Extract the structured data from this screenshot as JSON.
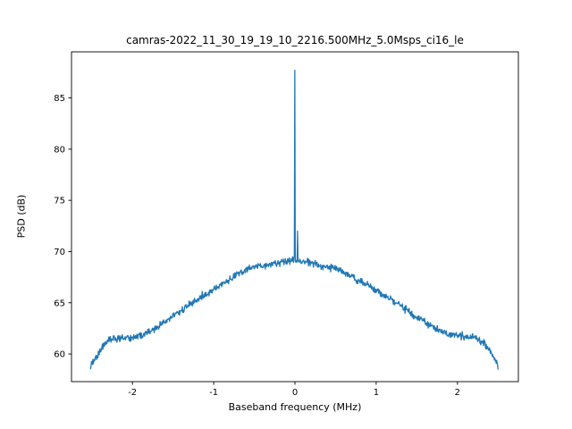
{
  "chart_data": {
    "type": "line",
    "title": "camras-2022_11_30_19_19_10_2216.500MHz_5.0Msps_ci16_le",
    "xlabel": "Baseband frequency (MHz)",
    "ylabel": "PSD (dB)",
    "xlim": [
      -2.75,
      2.75
    ],
    "ylim": [
      57.3,
      89.5
    ],
    "xticks": [
      -2,
      -1,
      0,
      1,
      2
    ],
    "yticks": [
      60,
      65,
      70,
      75,
      80,
      85
    ],
    "grid": false,
    "legend": null,
    "line_color": "#1f77b4",
    "samples": 900,
    "noise_db": 0.22,
    "envelope": [
      [
        -2.52,
        58.8
      ],
      [
        -2.5,
        59.0
      ],
      [
        -2.45,
        59.6
      ],
      [
        -2.4,
        60.3
      ],
      [
        -2.35,
        60.9
      ],
      [
        -2.3,
        61.3
      ],
      [
        -2.2,
        61.5
      ],
      [
        -2.1,
        61.5
      ],
      [
        -2.0,
        61.6
      ],
      [
        -1.9,
        61.8
      ],
      [
        -1.8,
        62.1
      ],
      [
        -1.7,
        62.6
      ],
      [
        -1.6,
        63.1
      ],
      [
        -1.5,
        63.7
      ],
      [
        -1.4,
        64.2
      ],
      [
        -1.3,
        64.8
      ],
      [
        -1.2,
        65.3
      ],
      [
        -1.1,
        65.8
      ],
      [
        -1.0,
        66.3
      ],
      [
        -0.9,
        66.8
      ],
      [
        -0.8,
        67.3
      ],
      [
        -0.7,
        67.8
      ],
      [
        -0.6,
        68.2
      ],
      [
        -0.5,
        68.5
      ],
      [
        -0.4,
        68.6
      ],
      [
        -0.3,
        68.8
      ],
      [
        -0.2,
        68.9
      ],
      [
        -0.1,
        69.0
      ],
      [
        0.0,
        69.2
      ],
      [
        0.1,
        69.0
      ],
      [
        0.2,
        68.9
      ],
      [
        0.3,
        68.7
      ],
      [
        0.4,
        68.5
      ],
      [
        0.5,
        68.3
      ],
      [
        0.6,
        68.0
      ],
      [
        0.7,
        67.6
      ],
      [
        0.8,
        67.1
      ],
      [
        0.9,
        66.7
      ],
      [
        1.0,
        66.2
      ],
      [
        1.1,
        65.7
      ],
      [
        1.2,
        65.2
      ],
      [
        1.3,
        64.7
      ],
      [
        1.4,
        64.2
      ],
      [
        1.5,
        63.6
      ],
      [
        1.6,
        63.1
      ],
      [
        1.7,
        62.6
      ],
      [
        1.8,
        62.2
      ],
      [
        1.9,
        61.9
      ],
      [
        2.0,
        61.8
      ],
      [
        2.1,
        61.7
      ],
      [
        2.2,
        61.6
      ],
      [
        2.3,
        61.3
      ],
      [
        2.35,
        60.9
      ],
      [
        2.4,
        60.3
      ],
      [
        2.45,
        59.6
      ],
      [
        2.5,
        58.9
      ]
    ],
    "spikes": [
      [
        0.0,
        87.7
      ],
      [
        0.03,
        72.0
      ]
    ]
  }
}
